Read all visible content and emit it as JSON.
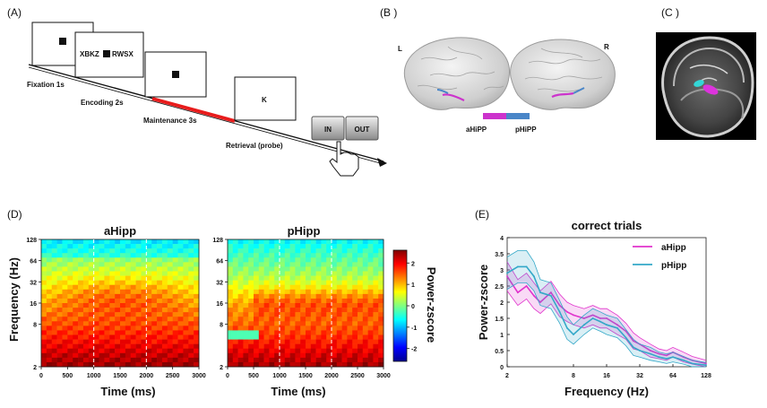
{
  "panels": {
    "a": {
      "label": "(A)",
      "screens": {
        "encoding_text_left": "XBKZ",
        "encoding_text_right": "RWSX",
        "retrieval_text": "K"
      },
      "stages": {
        "fixation": "Fixation 1s",
        "encoding": "Encoding 2s",
        "maintenance": "Maintenance 3s",
        "retrieval": "Retrieval (probe)"
      },
      "buttons": {
        "in": "IN",
        "out": "OUT"
      }
    },
    "b": {
      "label": "(B )",
      "hemi_left": "L",
      "hemi_right": "R",
      "legend_a": "aHiPP",
      "legend_p": "pHiPP",
      "colors": {
        "anterior": "#cc33cc",
        "posterior": "#4a86c8"
      }
    },
    "c": {
      "label": "(C )"
    },
    "d": {
      "label": "(D)",
      "left_title": "aHipp",
      "right_title": "pHipp",
      "ylabel": "Frequency (Hz)",
      "xlabel": "Time (ms)",
      "colorbar_label": "Power-zscore",
      "x_ticks": [
        "0",
        "500",
        "1000",
        "1500",
        "2000",
        "2500",
        "3000"
      ],
      "y_ticks": [
        "2",
        "8",
        "16",
        "32",
        "64",
        "128"
      ],
      "colorbar_ticks": [
        "-2",
        "-1",
        "0",
        "1",
        "2"
      ]
    },
    "e": {
      "label": "(E)"
    }
  },
  "chart_data": {
    "type": "line",
    "title": "correct trials",
    "xlabel": "Frequency (Hz)",
    "ylabel": "Power-zscore",
    "x_scale": "log2",
    "xlim": [
      2,
      128
    ],
    "ylim": [
      0,
      4
    ],
    "x_tick_labels": [
      "2",
      "8",
      "16",
      "32",
      "64",
      "128"
    ],
    "y_tick_labels": [
      "0",
      "0.5",
      "1",
      "1.5",
      "2",
      "2.5",
      "3",
      "3.5",
      "4"
    ],
    "legend_position": "top-right",
    "series": [
      {
        "name": "aHipp",
        "color": "#e033cc",
        "x": [
          2,
          2.5,
          3,
          3.5,
          4,
          5,
          6,
          7,
          8,
          10,
          12,
          14,
          16,
          20,
          24,
          28,
          32,
          40,
          48,
          56,
          64,
          80,
          96,
          128
        ],
        "y": [
          2.8,
          2.3,
          2.5,
          2.2,
          2.0,
          2.3,
          1.9,
          1.7,
          1.6,
          1.5,
          1.6,
          1.5,
          1.5,
          1.3,
          1.1,
          0.8,
          0.7,
          0.5,
          0.4,
          0.35,
          0.45,
          0.3,
          0.2,
          0.1
        ],
        "err": [
          0.45,
          0.4,
          0.4,
          0.4,
          0.35,
          0.35,
          0.35,
          0.3,
          0.3,
          0.3,
          0.3,
          0.3,
          0.3,
          0.3,
          0.25,
          0.25,
          0.2,
          0.2,
          0.15,
          0.15,
          0.15,
          0.15,
          0.12,
          0.1
        ]
      },
      {
        "name": "pHipp",
        "color": "#33a8c8",
        "x": [
          2,
          2.5,
          3,
          3.5,
          4,
          5,
          6,
          7,
          8,
          10,
          12,
          14,
          16,
          20,
          24,
          28,
          32,
          40,
          48,
          56,
          64,
          80,
          96,
          128
        ],
        "y": [
          2.9,
          3.1,
          3.1,
          2.8,
          2.3,
          2.2,
          1.7,
          1.2,
          1.0,
          1.3,
          1.5,
          1.4,
          1.3,
          1.2,
          0.9,
          0.6,
          0.5,
          0.4,
          0.3,
          0.25,
          0.3,
          0.2,
          0.1,
          0.05
        ],
        "err": [
          0.5,
          0.5,
          0.5,
          0.45,
          0.4,
          0.4,
          0.35,
          0.35,
          0.3,
          0.3,
          0.3,
          0.3,
          0.3,
          0.3,
          0.25,
          0.25,
          0.2,
          0.2,
          0.15,
          0.15,
          0.15,
          0.12,
          0.1,
          0.08
        ]
      }
    ]
  }
}
